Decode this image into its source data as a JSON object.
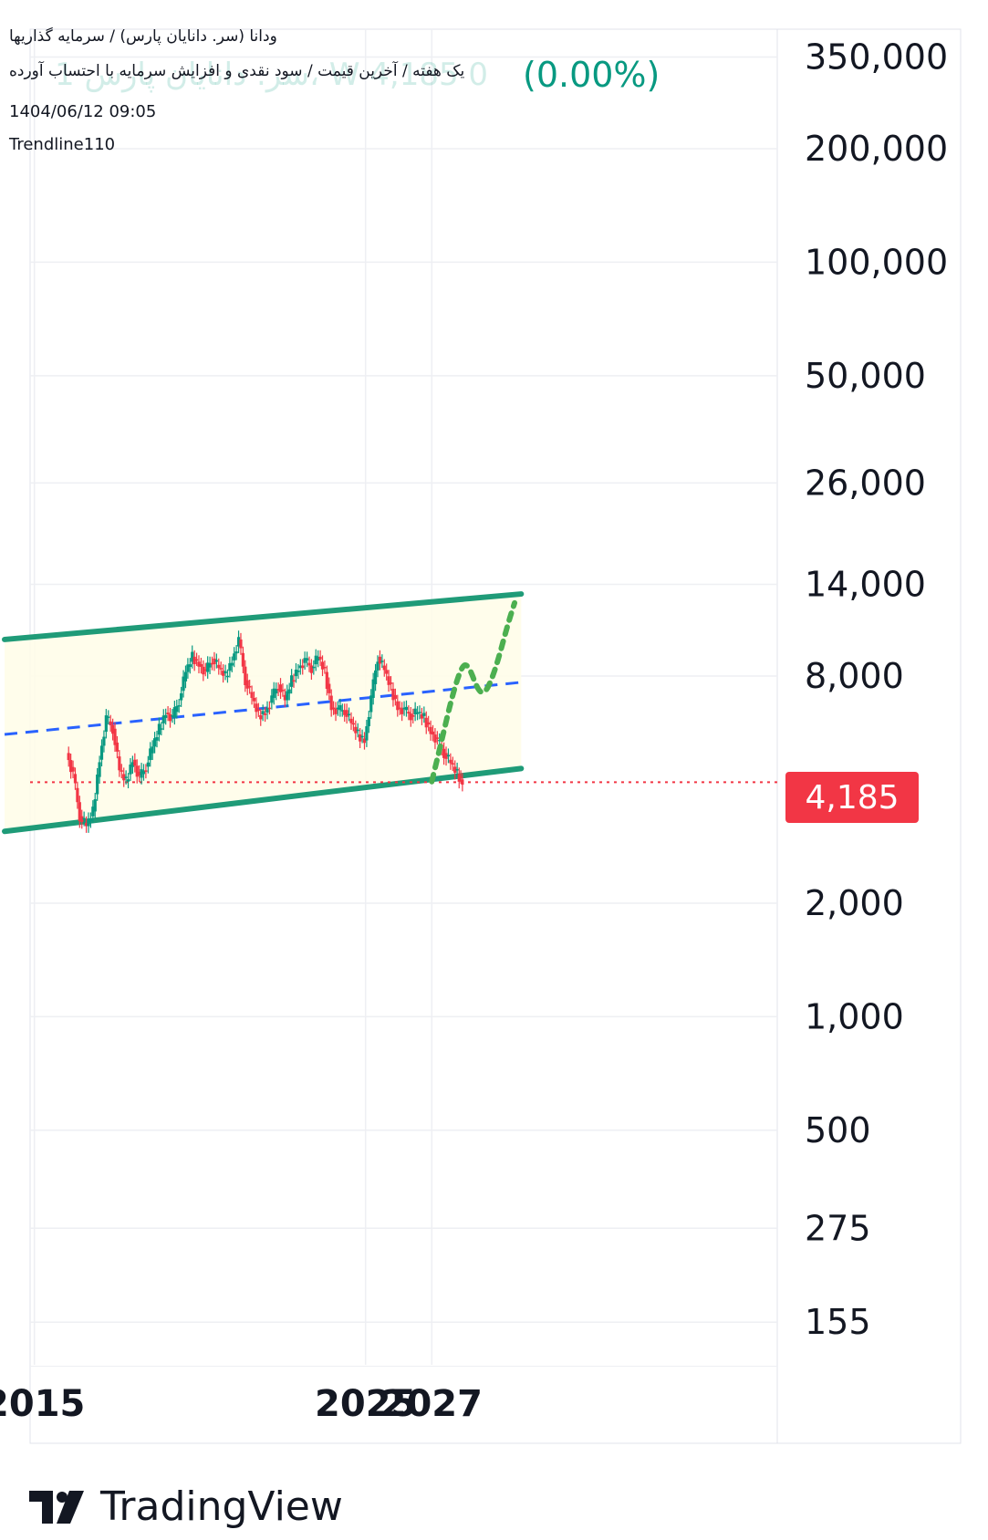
{
  "header": {
    "title_line": "ودانا (سر. دانایان پارس) / سرمایه گذاریها",
    "desc_line": "یک هفته / آخرین قیمت / سود نقدی و افزایش سرمایه با احتساب آورده",
    "ghost_text": "1 سر. دانایان پارس، W 4,185 0",
    "change_pct": "(0.00%)",
    "datetime": "1404/06/12 09:05",
    "indicator": "Trendline110"
  },
  "price_badge": "4,185",
  "brand": "TradingView",
  "colors": {
    "up": "#089981",
    "down": "#f23645",
    "channel": "#1f9b78",
    "midline": "#2962ff",
    "projection": "#4caf50",
    "channel_fill": "#fffde7",
    "price_line": "#f23645"
  },
  "chart_data": {
    "type": "candlestick",
    "y_scale": "log",
    "y_ticks": [
      "350,000",
      "200,000",
      "100,000",
      "50,000",
      "26,000",
      "14,000",
      "8,000",
      "2,000",
      "1,000",
      "500",
      "275",
      "155"
    ],
    "x_ticks": [
      "2015",
      "2025",
      "2027"
    ],
    "last_price": 4185,
    "grid": true,
    "channel": {
      "upper": [
        [
          2014.1,
          10000
        ],
        [
          2029.7,
          13200
        ]
      ],
      "lower": [
        [
          2014.1,
          3100
        ],
        [
          2029.7,
          4550
        ]
      ],
      "mid": [
        [
          2014.1,
          5600
        ],
        [
          2029.7,
          7700
        ]
      ]
    },
    "projection": [
      [
        2027.0,
        4200
      ],
      [
        2027.3,
        5400
      ],
      [
        2027.6,
        7000
      ],
      [
        2027.9,
        8500
      ],
      [
        2028.1,
        8600
      ],
      [
        2028.4,
        7300
      ],
      [
        2028.6,
        7200
      ],
      [
        2028.8,
        7800
      ],
      [
        2029.0,
        8800
      ],
      [
        2029.3,
        11000
      ],
      [
        2029.5,
        12500
      ]
    ],
    "price_path": [
      [
        2016.0,
        5000
      ],
      [
        2016.2,
        4400
      ],
      [
        2016.4,
        3400
      ],
      [
        2016.6,
        3200
      ],
      [
        2016.8,
        3500
      ],
      [
        2017.0,
        4800
      ],
      [
        2017.2,
        6200
      ],
      [
        2017.4,
        5800
      ],
      [
        2017.6,
        4500
      ],
      [
        2017.8,
        4200
      ],
      [
        2018.0,
        4800
      ],
      [
        2018.2,
        4300
      ],
      [
        2018.4,
        4600
      ],
      [
        2018.6,
        5200
      ],
      [
        2018.8,
        5800
      ],
      [
        2019.0,
        6400
      ],
      [
        2019.2,
        6200
      ],
      [
        2019.4,
        6900
      ],
      [
        2019.6,
        8200
      ],
      [
        2019.8,
        9000
      ],
      [
        2020.0,
        8600
      ],
      [
        2020.2,
        8200
      ],
      [
        2020.4,
        8900
      ],
      [
        2020.6,
        8400
      ],
      [
        2020.8,
        8000
      ],
      [
        2021.0,
        8800
      ],
      [
        2021.2,
        10000
      ],
      [
        2021.4,
        7800
      ],
      [
        2021.6,
        7000
      ],
      [
        2021.8,
        6300
      ],
      [
        2022.0,
        6400
      ],
      [
        2022.2,
        7000
      ],
      [
        2022.4,
        7600
      ],
      [
        2022.6,
        6900
      ],
      [
        2022.8,
        7800
      ],
      [
        2023.0,
        8400
      ],
      [
        2023.2,
        8800
      ],
      [
        2023.4,
        8400
      ],
      [
        2023.6,
        9000
      ],
      [
        2023.8,
        8200
      ],
      [
        2024.0,
        6600
      ],
      [
        2024.2,
        6500
      ],
      [
        2024.4,
        6500
      ],
      [
        2024.6,
        6000
      ],
      [
        2024.8,
        5600
      ],
      [
        2025.0,
        5400
      ],
      [
        2025.2,
        7000
      ],
      [
        2025.4,
        9000
      ],
      [
        2025.6,
        8300
      ],
      [
        2025.8,
        7400
      ],
      [
        2026.0,
        6600
      ],
      [
        2026.2,
        6500
      ],
      [
        2026.4,
        6300
      ],
      [
        2026.6,
        6400
      ],
      [
        2026.8,
        6200
      ],
      [
        2027.0,
        5700
      ],
      [
        2027.2,
        5400
      ],
      [
        2027.4,
        5000
      ],
      [
        2027.6,
        4700
      ],
      [
        2027.8,
        4400
      ],
      [
        2027.95,
        4185
      ]
    ]
  }
}
